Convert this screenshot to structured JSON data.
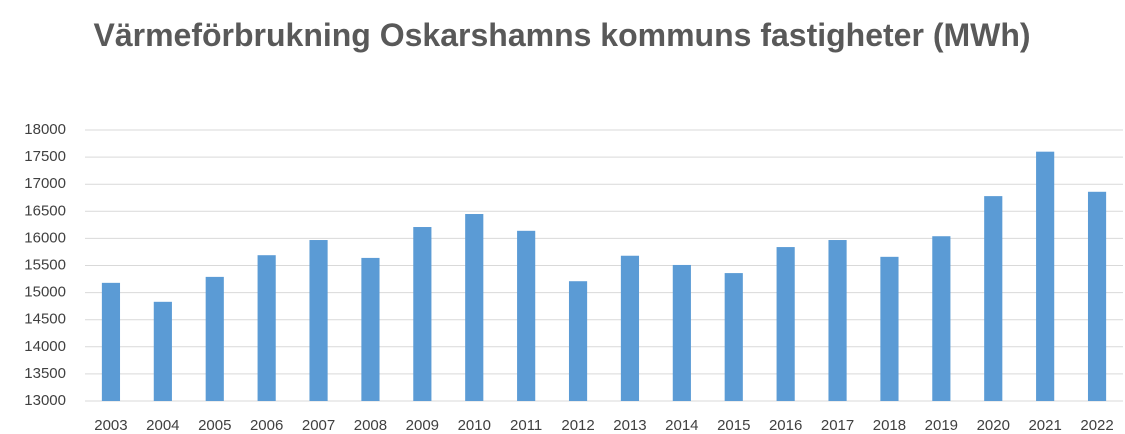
{
  "chart_data": {
    "type": "bar",
    "title": "Värmeförbrukning Oskarshamns kommuns fastigheter (MWh)",
    "categories": [
      "2003",
      "2004",
      "2005",
      "2006",
      "2007",
      "2008",
      "2009",
      "2010",
      "2011",
      "2012",
      "2013",
      "2014",
      "2015",
      "2016",
      "2017",
      "2018",
      "2019",
      "2020",
      "2021",
      "2022"
    ],
    "values": [
      15180,
      14830,
      15290,
      15690,
      15970,
      15640,
      16210,
      16450,
      16140,
      15210,
      15680,
      15510,
      15360,
      15840,
      15970,
      15660,
      16040,
      16780,
      17600,
      16860
    ],
    "color": "#5b9bd5",
    "ylim": [
      13000,
      18000
    ],
    "yticks": [
      13000,
      13500,
      14000,
      14500,
      15000,
      15500,
      16000,
      16500,
      17000,
      17500,
      18000
    ],
    "grid": true
  }
}
